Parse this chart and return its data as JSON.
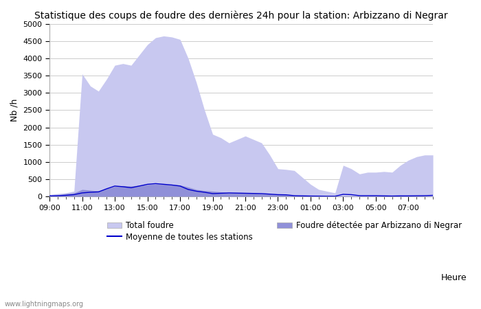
{
  "title": "Statistique des coups de foudre des dernières 24h pour la station: Arbizzano di Negrar",
  "xlabel": "Heure",
  "ylabel": "Nb /h",
  "ylim": [
    0,
    5000
  ],
  "yticks": [
    0,
    500,
    1000,
    1500,
    2000,
    2500,
    3000,
    3500,
    4000,
    4500,
    5000
  ],
  "watermark": "www.lightningmaps.org",
  "x_tick_labels": [
    "09:00",
    "11:00",
    "13:00",
    "15:00",
    "17:00",
    "19:00",
    "21:00",
    "23:00",
    "01:00",
    "03:00",
    "05:00",
    "07:00"
  ],
  "x_tick_positions": [
    0,
    4,
    8,
    12,
    16,
    20,
    24,
    28,
    32,
    36,
    40,
    44
  ],
  "total_foudre": [
    50,
    80,
    100,
    150,
    3550,
    3200,
    3050,
    3400,
    3800,
    3850,
    3800,
    4100,
    4400,
    4600,
    4650,
    4620,
    4550,
    4000,
    3300,
    2500,
    1800,
    1700,
    1550,
    1650,
    1750,
    1650,
    1550,
    1200,
    800,
    780,
    750,
    550,
    350,
    200,
    150,
    100,
    900,
    800,
    650,
    700,
    700,
    720,
    700,
    900,
    1050,
    1150,
    1200,
    1200
  ],
  "foudre_detectee": [
    20,
    40,
    80,
    100,
    200,
    180,
    160,
    220,
    290,
    310,
    300,
    320,
    340,
    360,
    350,
    345,
    330,
    270,
    200,
    170,
    150,
    130,
    100,
    110,
    100,
    95,
    80,
    65,
    50,
    48,
    20,
    15,
    10,
    10,
    10,
    8,
    10,
    10,
    10,
    10,
    10,
    10,
    10,
    10,
    10,
    10,
    10,
    10
  ],
  "moyenne_stations": [
    15,
    20,
    30,
    50,
    100,
    120,
    130,
    220,
    300,
    280,
    250,
    300,
    350,
    370,
    350,
    330,
    300,
    200,
    150,
    120,
    80,
    90,
    100,
    95,
    90,
    85,
    80,
    65,
    50,
    45,
    20,
    15,
    10,
    8,
    5,
    4,
    60,
    50,
    20,
    20,
    20,
    15,
    10,
    15,
    15,
    18,
    20,
    30
  ],
  "color_total": "#c8c8f0",
  "color_detectee": "#9090d8",
  "color_moyenne": "#0000cc",
  "bg_color": "#ffffff",
  "grid_color": "#cccccc",
  "title_fontsize": 10,
  "axis_fontsize": 9,
  "tick_fontsize": 8,
  "legend_fontsize": 8.5
}
